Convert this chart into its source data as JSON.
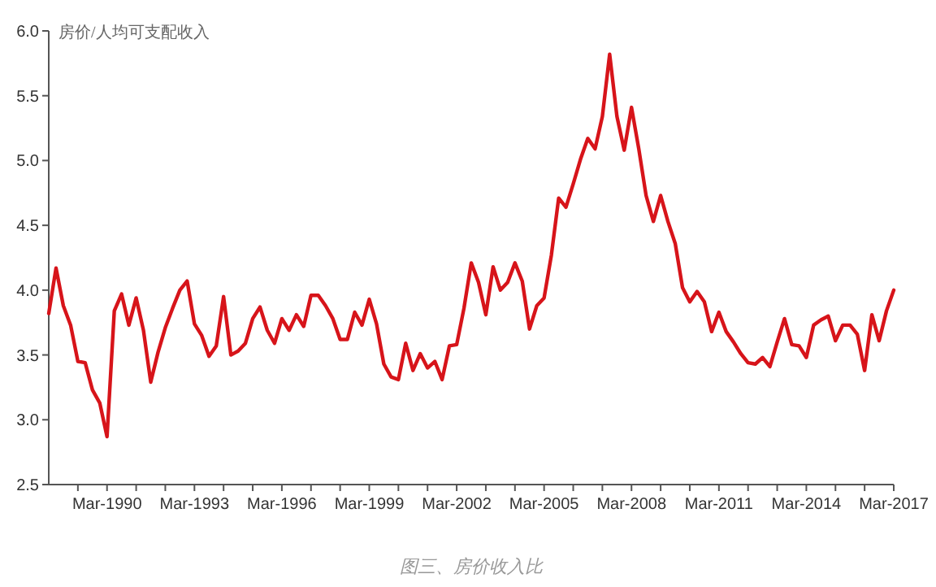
{
  "chart_data": {
    "type": "line",
    "ylabel": "房价/人均可支配收入",
    "annotations": [
      "图三、房价收入比"
    ],
    "x": [
      "1988-03",
      "1988-06",
      "1988-09",
      "1988-12",
      "1989-03",
      "1989-06",
      "1989-09",
      "1989-12",
      "1990-03",
      "1990-06",
      "1990-09",
      "1990-12",
      "1991-03",
      "1991-06",
      "1991-09",
      "1991-12",
      "1992-03",
      "1992-06",
      "1992-09",
      "1992-12",
      "1993-03",
      "1993-06",
      "1993-09",
      "1993-12",
      "1994-03",
      "1994-06",
      "1994-09",
      "1994-12",
      "1995-03",
      "1995-06",
      "1995-09",
      "1995-12",
      "1996-03",
      "1996-06",
      "1996-09",
      "1996-12",
      "1997-03",
      "1997-06",
      "1997-09",
      "1997-12",
      "1998-03",
      "1998-06",
      "1998-09",
      "1998-12",
      "1999-03",
      "1999-06",
      "1999-09",
      "1999-12",
      "2000-03",
      "2000-06",
      "2000-09",
      "2000-12",
      "2001-03",
      "2001-06",
      "2001-09",
      "2001-12",
      "2002-03",
      "2002-06",
      "2002-09",
      "2002-12",
      "2003-03",
      "2003-06",
      "2003-09",
      "2003-12",
      "2004-03",
      "2004-06",
      "2004-09",
      "2004-12",
      "2005-03",
      "2005-06",
      "2005-09",
      "2005-12",
      "2006-03",
      "2006-06",
      "2006-09",
      "2006-12",
      "2007-03",
      "2007-06",
      "2007-09",
      "2007-12",
      "2008-03",
      "2008-06",
      "2008-09",
      "2008-12",
      "2009-03",
      "2009-06",
      "2009-09",
      "2009-12",
      "2010-03",
      "2010-06",
      "2010-09",
      "2010-12",
      "2011-03",
      "2011-06",
      "2011-09",
      "2011-12",
      "2012-03",
      "2012-06",
      "2012-09",
      "2012-12",
      "2013-03",
      "2013-06",
      "2013-09",
      "2013-12",
      "2014-03",
      "2014-06",
      "2014-09",
      "2014-12",
      "2015-03",
      "2015-06",
      "2015-09",
      "2015-12",
      "2016-03",
      "2016-06",
      "2016-09",
      "2016-12",
      "2017-03"
    ],
    "series": [
      {
        "color": "#d7141a",
        "values": [
          3.82,
          4.17,
          3.88,
          3.73,
          3.45,
          3.44,
          3.23,
          3.13,
          2.87,
          3.84,
          3.97,
          3.73,
          3.94,
          3.69,
          3.29,
          3.52,
          3.71,
          3.86,
          4.0,
          4.07,
          3.74,
          3.65,
          3.49,
          3.57,
          3.95,
          3.5,
          3.53,
          3.59,
          3.78,
          3.87,
          3.69,
          3.59,
          3.78,
          3.69,
          3.81,
          3.72,
          3.96,
          3.96,
          3.88,
          3.78,
          3.62,
          3.62,
          3.83,
          3.73,
          3.93,
          3.74,
          3.43,
          3.33,
          3.31,
          3.59,
          3.38,
          3.51,
          3.4,
          3.45,
          3.31,
          3.57,
          3.58,
          3.86,
          4.21,
          4.06,
          3.81,
          4.18,
          4.0,
          4.06,
          4.21,
          4.07,
          3.7,
          3.88,
          3.94,
          4.27,
          4.71,
          4.64,
          4.82,
          5.01,
          5.17,
          5.09,
          5.34,
          5.82,
          5.34,
          5.08,
          5.41,
          5.09,
          4.73,
          4.53,
          4.73,
          4.53,
          4.36,
          4.02,
          3.91,
          3.99,
          3.91,
          3.68,
          3.83,
          3.68,
          3.6,
          3.51,
          3.44,
          3.43,
          3.48,
          3.41,
          3.6,
          3.78,
          3.58,
          3.57,
          3.48,
          3.73,
          3.77,
          3.8,
          3.61,
          3.73,
          3.73,
          3.66,
          3.38,
          3.81,
          3.61,
          3.84,
          4.0
        ]
      }
    ],
    "xlim": [
      "1988-03",
      "2017-03"
    ],
    "xticks": [
      {
        "value": "1989-03",
        "label": null
      },
      {
        "value": "1990-03",
        "label": "Mar-1990"
      },
      {
        "value": "1991-03",
        "label": null
      },
      {
        "value": "1992-03",
        "label": null
      },
      {
        "value": "1993-03",
        "label": "Mar-1993"
      },
      {
        "value": "1994-03",
        "label": null
      },
      {
        "value": "1995-03",
        "label": null
      },
      {
        "value": "1996-03",
        "label": "Mar-1996"
      },
      {
        "value": "1997-03",
        "label": null
      },
      {
        "value": "1998-03",
        "label": null
      },
      {
        "value": "1999-03",
        "label": "Mar-1999"
      },
      {
        "value": "2000-03",
        "label": null
      },
      {
        "value": "2001-03",
        "label": null
      },
      {
        "value": "2002-03",
        "label": "Mar-2002"
      },
      {
        "value": "2003-03",
        "label": null
      },
      {
        "value": "2004-03",
        "label": null
      },
      {
        "value": "2005-03",
        "label": "Mar-2005"
      },
      {
        "value": "2006-03",
        "label": null
      },
      {
        "value": "2007-03",
        "label": null
      },
      {
        "value": "2008-03",
        "label": "Mar-2008"
      },
      {
        "value": "2009-03",
        "label": null
      },
      {
        "value": "2010-03",
        "label": null
      },
      {
        "value": "2011-03",
        "label": "Mar-2011"
      },
      {
        "value": "2012-03",
        "label": null
      },
      {
        "value": "2013-03",
        "label": null
      },
      {
        "value": "2014-03",
        "label": "Mar-2014"
      },
      {
        "value": "2015-03",
        "label": null
      },
      {
        "value": "2016-03",
        "label": null
      },
      {
        "value": "2017-03",
        "label": "Mar-2017"
      }
    ],
    "ylim": [
      2.5,
      6.0
    ],
    "yticks": [
      2.5,
      {
        "value": 3,
        "label": "3.0"
      },
      3.5,
      {
        "value": 4,
        "label": "4.0"
      },
      4.5,
      {
        "value": 5,
        "label": "5.0"
      },
      5.5,
      {
        "value": 6,
        "label": "6.0"
      }
    ],
    "line_style": "solid"
  }
}
